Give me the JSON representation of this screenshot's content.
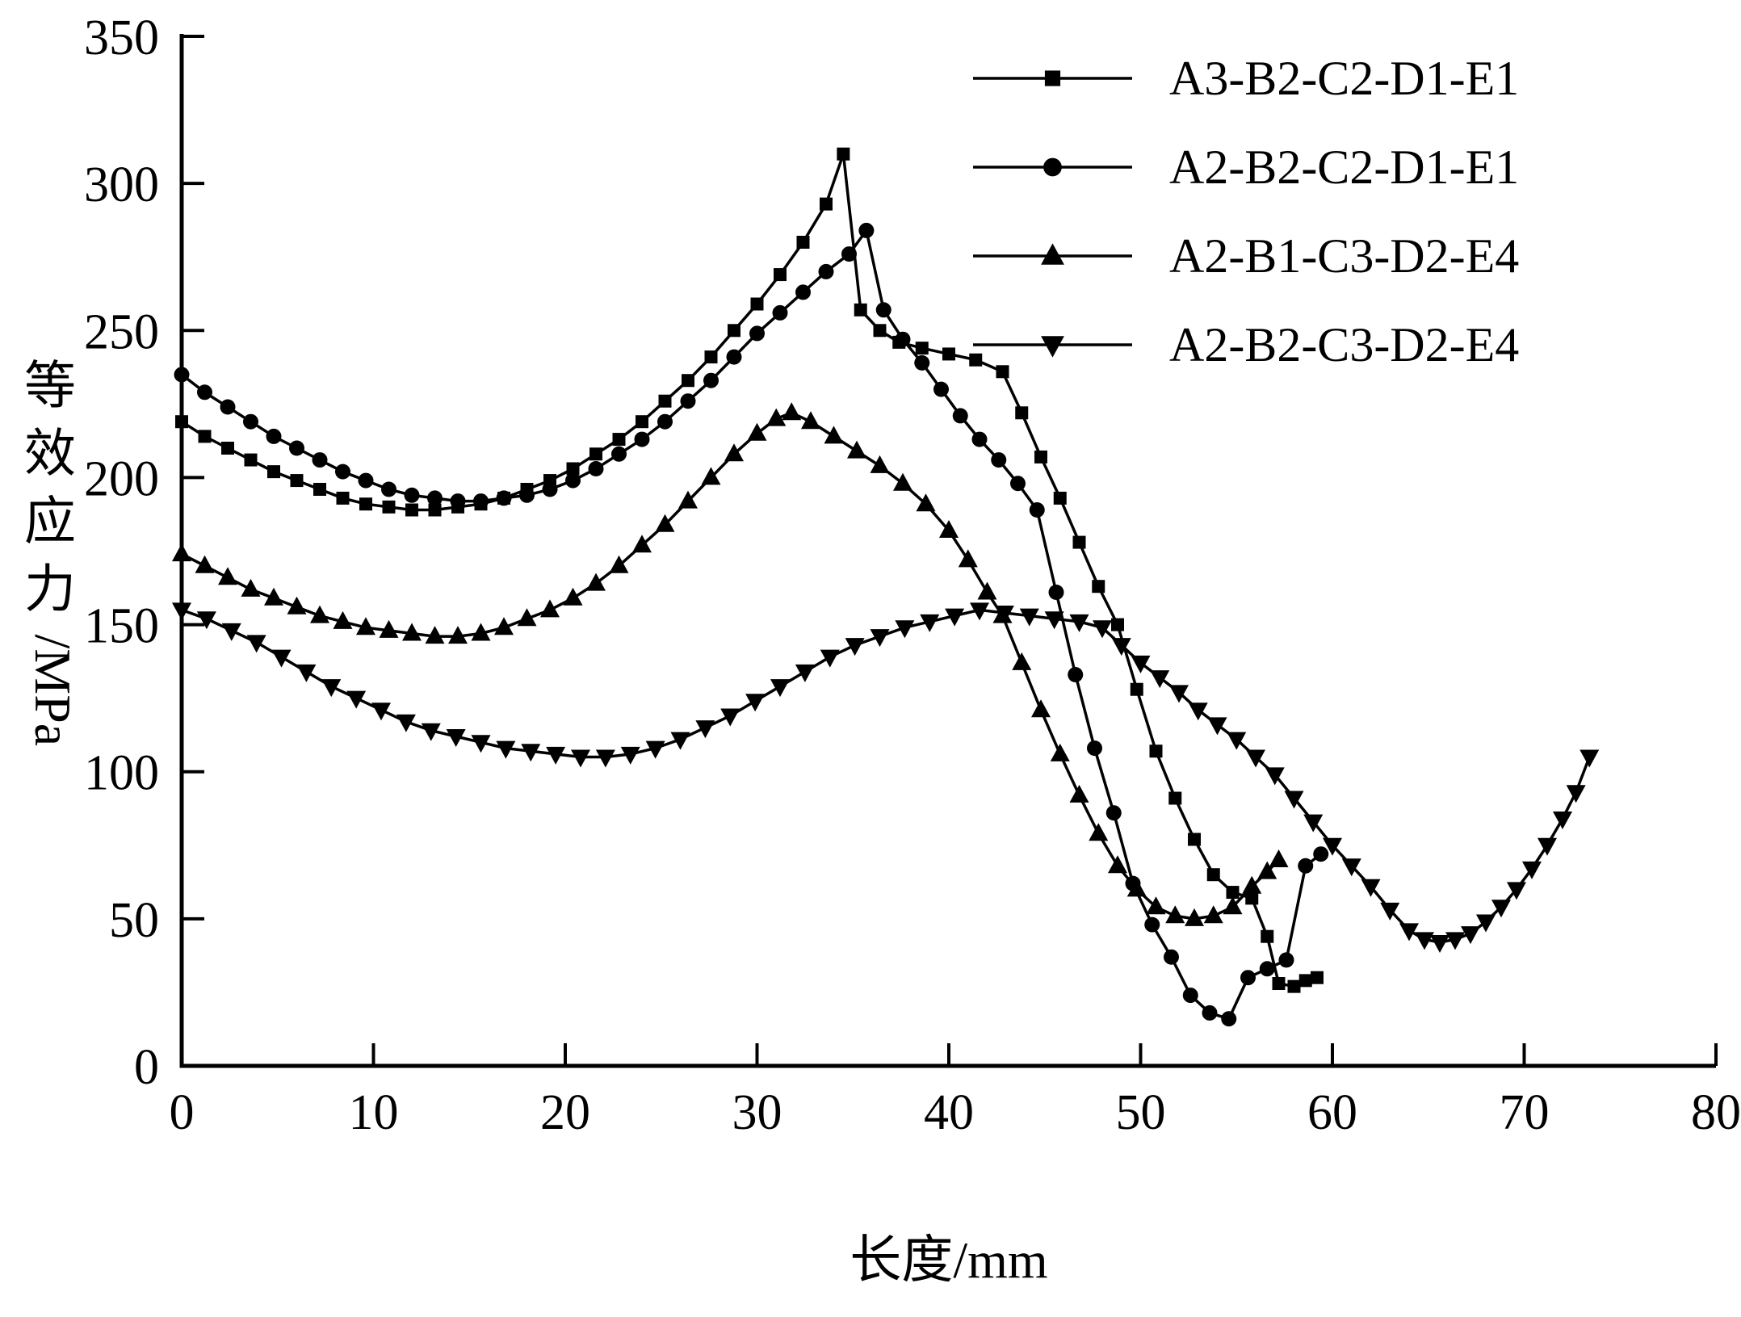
{
  "chart_data": {
    "type": "line",
    "title": "",
    "xlabel": "长度/mm",
    "ylabel": "等效应力/MPa",
    "xlim": [
      0,
      80
    ],
    "ylim": [
      0,
      350
    ],
    "xticks": [
      0,
      10,
      20,
      30,
      40,
      50,
      60,
      70,
      80
    ],
    "yticks": [
      0,
      50,
      100,
      150,
      200,
      250,
      300,
      350
    ],
    "grid": false,
    "legend_position": "top-right",
    "color": "#000000",
    "background": "#ffffff",
    "series": [
      {
        "name": "A3-B2-C2-D1-E1",
        "marker": "square",
        "points": [
          [
            0,
            219
          ],
          [
            1.2,
            214
          ],
          [
            2.4,
            210
          ],
          [
            3.6,
            206
          ],
          [
            4.8,
            202
          ],
          [
            6,
            199
          ],
          [
            7.2,
            196
          ],
          [
            8.4,
            193
          ],
          [
            9.6,
            191
          ],
          [
            10.8,
            190
          ],
          [
            12,
            189
          ],
          [
            13.2,
            189
          ],
          [
            14.4,
            190
          ],
          [
            15.6,
            191
          ],
          [
            16.8,
            193
          ],
          [
            18,
            196
          ],
          [
            19.2,
            199
          ],
          [
            20.4,
            203
          ],
          [
            21.6,
            208
          ],
          [
            22.8,
            213
          ],
          [
            24,
            219
          ],
          [
            25.2,
            226
          ],
          [
            26.4,
            233
          ],
          [
            27.6,
            241
          ],
          [
            28.8,
            250
          ],
          [
            30,
            259
          ],
          [
            31.2,
            269
          ],
          [
            32.4,
            280
          ],
          [
            33.6,
            293
          ],
          [
            34.5,
            310
          ],
          [
            35.4,
            257
          ],
          [
            36.4,
            250
          ],
          [
            37.4,
            246
          ],
          [
            38.6,
            244
          ],
          [
            40,
            242
          ],
          [
            41.4,
            240
          ],
          [
            42.8,
            236
          ],
          [
            43.8,
            222
          ],
          [
            44.8,
            207
          ],
          [
            45.8,
            193
          ],
          [
            46.8,
            178
          ],
          [
            47.8,
            163
          ],
          [
            48.8,
            150
          ],
          [
            49.8,
            128
          ],
          [
            50.8,
            107
          ],
          [
            51.8,
            91
          ],
          [
            52.8,
            77
          ],
          [
            53.8,
            65
          ],
          [
            54.8,
            59
          ],
          [
            55.8,
            57
          ],
          [
            56.6,
            44
          ],
          [
            57.2,
            28
          ],
          [
            58,
            27
          ],
          [
            58.6,
            29
          ],
          [
            59.2,
            30
          ]
        ]
      },
      {
        "name": "A2-B2-C2-D1-E1",
        "marker": "circle",
        "points": [
          [
            0,
            235
          ],
          [
            1.2,
            229
          ],
          [
            2.4,
            224
          ],
          [
            3.6,
            219
          ],
          [
            4.8,
            214
          ],
          [
            6,
            210
          ],
          [
            7.2,
            206
          ],
          [
            8.4,
            202
          ],
          [
            9.6,
            199
          ],
          [
            10.8,
            196
          ],
          [
            12,
            194
          ],
          [
            13.2,
            193
          ],
          [
            14.4,
            192
          ],
          [
            15.6,
            192
          ],
          [
            16.8,
            193
          ],
          [
            18,
            194
          ],
          [
            19.2,
            196
          ],
          [
            20.4,
            199
          ],
          [
            21.6,
            203
          ],
          [
            22.8,
            208
          ],
          [
            24,
            213
          ],
          [
            25.2,
            219
          ],
          [
            26.4,
            226
          ],
          [
            27.6,
            233
          ],
          [
            28.8,
            241
          ],
          [
            30,
            249
          ],
          [
            31.2,
            256
          ],
          [
            32.4,
            263
          ],
          [
            33.6,
            270
          ],
          [
            34.8,
            276
          ],
          [
            35.7,
            284
          ],
          [
            36.6,
            257
          ],
          [
            37.6,
            247
          ],
          [
            38.6,
            239
          ],
          [
            39.6,
            230
          ],
          [
            40.6,
            221
          ],
          [
            41.6,
            213
          ],
          [
            42.6,
            206
          ],
          [
            43.6,
            198
          ],
          [
            44.6,
            189
          ],
          [
            45.6,
            161
          ],
          [
            46.6,
            133
          ],
          [
            47.6,
            108
          ],
          [
            48.6,
            86
          ],
          [
            49.6,
            62
          ],
          [
            50.6,
            48
          ],
          [
            51.6,
            37
          ],
          [
            52.6,
            24
          ],
          [
            53.6,
            18
          ],
          [
            54.6,
            16
          ],
          [
            55.6,
            30
          ],
          [
            56.6,
            33
          ],
          [
            57.6,
            36
          ],
          [
            58.6,
            68
          ],
          [
            59.4,
            72
          ]
        ]
      },
      {
        "name": "A2-B1-C3-D2-E4",
        "marker": "triangle-up",
        "points": [
          [
            0,
            174
          ],
          [
            1.2,
            170
          ],
          [
            2.4,
            166
          ],
          [
            3.6,
            162
          ],
          [
            4.8,
            159
          ],
          [
            6,
            156
          ],
          [
            7.2,
            153
          ],
          [
            8.4,
            151
          ],
          [
            9.6,
            149
          ],
          [
            10.8,
            148
          ],
          [
            12,
            147
          ],
          [
            13.2,
            146
          ],
          [
            14.4,
            146
          ],
          [
            15.6,
            147
          ],
          [
            16.8,
            149
          ],
          [
            18,
            152
          ],
          [
            19.2,
            155
          ],
          [
            20.4,
            159
          ],
          [
            21.6,
            164
          ],
          [
            22.8,
            170
          ],
          [
            24,
            177
          ],
          [
            25.2,
            184
          ],
          [
            26.4,
            192
          ],
          [
            27.6,
            200
          ],
          [
            28.8,
            208
          ],
          [
            30,
            215
          ],
          [
            31,
            220
          ],
          [
            31.8,
            222
          ],
          [
            32.8,
            219
          ],
          [
            34,
            214
          ],
          [
            35.2,
            209
          ],
          [
            36.4,
            204
          ],
          [
            37.6,
            198
          ],
          [
            38.8,
            191
          ],
          [
            40,
            182
          ],
          [
            41,
            172
          ],
          [
            42,
            161
          ],
          [
            42.8,
            153
          ],
          [
            43.8,
            137
          ],
          [
            44.8,
            121
          ],
          [
            45.8,
            106
          ],
          [
            46.8,
            92
          ],
          [
            47.8,
            79
          ],
          [
            48.8,
            68
          ],
          [
            49.8,
            60
          ],
          [
            50.8,
            54
          ],
          [
            51.8,
            51
          ],
          [
            52.8,
            50
          ],
          [
            53.8,
            51
          ],
          [
            54.8,
            54
          ],
          [
            55.8,
            61
          ],
          [
            56.6,
            66
          ],
          [
            57.2,
            70
          ]
        ]
      },
      {
        "name": "A2-B2-C3-D2-E4",
        "marker": "triangle-down",
        "points": [
          [
            0,
            155
          ],
          [
            1.3,
            152
          ],
          [
            2.6,
            148
          ],
          [
            3.9,
            144
          ],
          [
            5.2,
            139
          ],
          [
            6.5,
            134
          ],
          [
            7.8,
            129
          ],
          [
            9.1,
            125
          ],
          [
            10.4,
            121
          ],
          [
            11.7,
            117
          ],
          [
            13,
            114
          ],
          [
            14.3,
            112
          ],
          [
            15.6,
            110
          ],
          [
            16.9,
            108
          ],
          [
            18.2,
            107
          ],
          [
            19.5,
            106
          ],
          [
            20.8,
            105
          ],
          [
            22.1,
            105
          ],
          [
            23.4,
            106
          ],
          [
            24.7,
            108
          ],
          [
            26,
            111
          ],
          [
            27.3,
            115
          ],
          [
            28.6,
            119
          ],
          [
            29.9,
            124
          ],
          [
            31.2,
            129
          ],
          [
            32.5,
            134
          ],
          [
            33.8,
            139
          ],
          [
            35.1,
            143
          ],
          [
            36.4,
            146
          ],
          [
            37.7,
            149
          ],
          [
            39,
            151
          ],
          [
            40.3,
            153
          ],
          [
            41.6,
            155
          ],
          [
            42.9,
            154
          ],
          [
            44.2,
            153
          ],
          [
            45.5,
            152
          ],
          [
            46.8,
            151
          ],
          [
            48,
            149
          ],
          [
            49,
            143
          ],
          [
            50,
            137
          ],
          [
            51,
            132
          ],
          [
            52,
            127
          ],
          [
            53,
            121
          ],
          [
            54,
            116
          ],
          [
            55,
            111
          ],
          [
            56,
            105
          ],
          [
            57,
            99
          ],
          [
            58,
            91
          ],
          [
            59,
            83
          ],
          [
            60,
            75
          ],
          [
            61,
            68
          ],
          [
            62,
            61
          ],
          [
            63,
            53
          ],
          [
            64,
            46
          ],
          [
            64.8,
            43
          ],
          [
            65.6,
            42
          ],
          [
            66.4,
            43
          ],
          [
            67.2,
            45
          ],
          [
            68,
            49
          ],
          [
            68.8,
            54
          ],
          [
            69.6,
            60
          ],
          [
            70.4,
            67
          ],
          [
            71.2,
            75
          ],
          [
            72,
            84
          ],
          [
            72.7,
            93
          ],
          [
            73.4,
            105
          ]
        ]
      }
    ]
  }
}
